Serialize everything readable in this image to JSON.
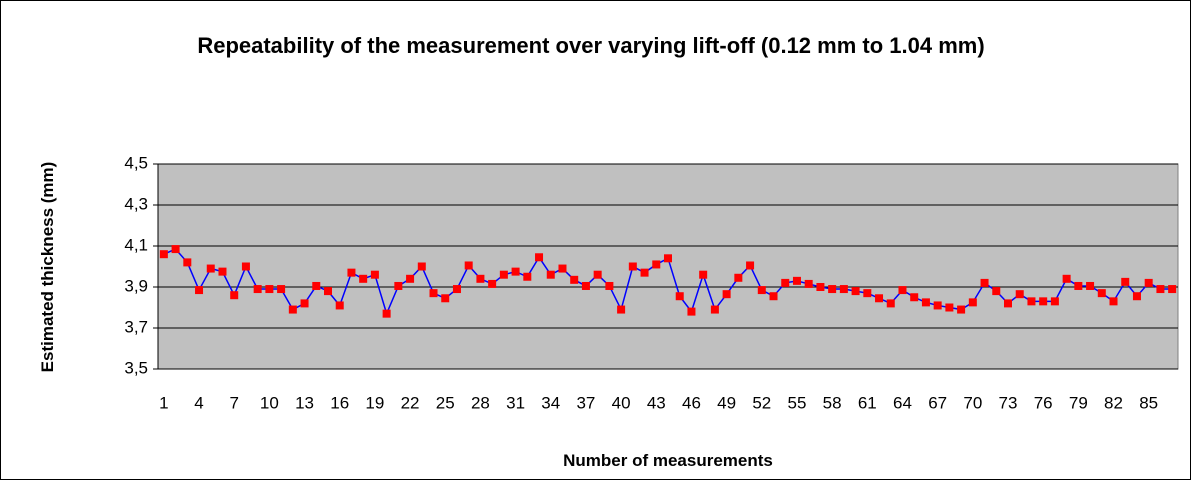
{
  "chart_data": {
    "type": "line",
    "title": "Repeatability of the measurement over varying lift-off (0.12 mm to 1.04 mm)",
    "y_label": "Estimated thickness (mm)",
    "x_label": "Number of measurements",
    "categories": [
      1,
      null,
      null,
      4,
      null,
      null,
      7,
      null,
      null,
      10,
      null,
      null,
      13,
      null,
      null,
      16,
      null,
      null,
      19,
      null,
      null,
      22,
      null,
      null,
      25,
      null,
      null,
      28,
      null,
      null,
      31,
      null,
      null,
      34,
      null,
      null,
      37,
      null,
      null,
      40,
      null,
      null,
      43,
      null,
      null,
      46,
      null,
      null,
      49,
      null,
      null,
      52,
      null,
      null,
      55,
      null,
      null,
      58,
      null,
      null,
      61,
      null,
      null,
      64,
      null,
      null,
      67,
      null,
      null,
      70,
      null,
      null,
      73,
      null,
      null,
      76,
      null,
      null,
      79,
      null,
      null,
      82,
      null,
      null,
      85,
      null,
      null
    ],
    "series": [
      {
        "color": "#0000ff",
        "marker_color": "#ff0000",
        "values": [
          4.06,
          4.085,
          4.02,
          3.885,
          3.99,
          3.975,
          3.86,
          4.0,
          3.89,
          3.89,
          3.89,
          3.79,
          3.82,
          3.905,
          3.88,
          3.81,
          3.97,
          3.94,
          3.96,
          3.77,
          3.905,
          3.94,
          4.0,
          3.87,
          3.845,
          3.89,
          4.005,
          3.94,
          3.915,
          3.96,
          3.975,
          3.95,
          4.045,
          3.96,
          3.99,
          3.935,
          3.905,
          3.96,
          3.905,
          3.79,
          4.0,
          3.97,
          4.01,
          4.04,
          3.855,
          3.78,
          3.96,
          3.79,
          3.865,
          3.945,
          4.005,
          3.885,
          3.855,
          3.92,
          3.93,
          3.915,
          3.9,
          3.89,
          3.89,
          3.88,
          3.87,
          3.845,
          3.82,
          3.885,
          3.85,
          3.825,
          3.81,
          3.8,
          3.79,
          3.825,
          3.92,
          3.88,
          3.82,
          3.865,
          3.83,
          3.83,
          3.83,
          3.94,
          3.905,
          3.905,
          3.87,
          3.83,
          3.925,
          3.855,
          3.92,
          3.89,
          3.89
        ]
      }
    ],
    "ylim": [
      3.5,
      4.5
    ],
    "yticks": [
      {
        "value": 3.5,
        "label": "3,5"
      },
      {
        "value": 3.7,
        "label": "3,7"
      },
      {
        "value": 3.9,
        "label": "3,9"
      },
      {
        "value": 4.1,
        "label": "4,1"
      },
      {
        "value": 4.3,
        "label": "4,3"
      },
      {
        "value": 4.5,
        "label": "4,5"
      }
    ],
    "grid": true,
    "plot_background": "#c0c0c0"
  }
}
